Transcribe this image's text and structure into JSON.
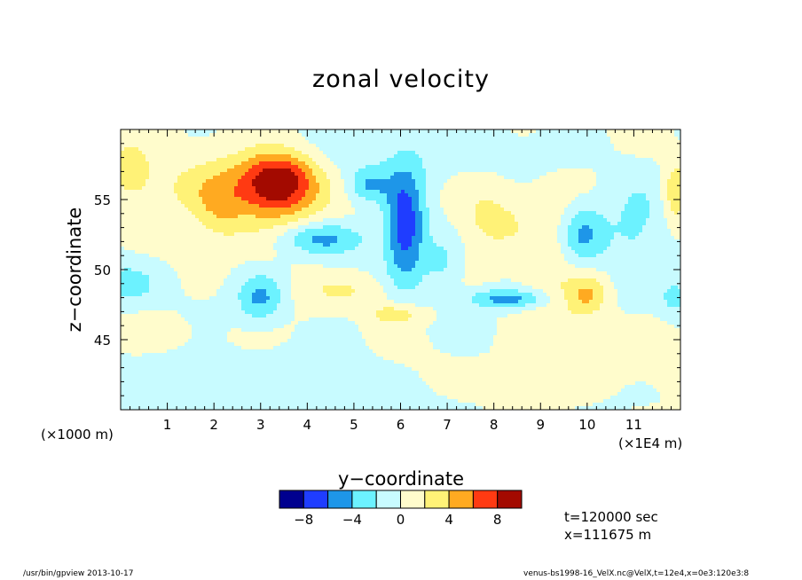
{
  "chart_data": {
    "type": "heatmap",
    "title": "zonal velocity",
    "xlabel": "y−coordinate",
    "ylabel": "z−coordinate",
    "x_scale_note": "(×1E4 m)",
    "y_scale_note": "(×1000 m)",
    "xlim": [
      0,
      12
    ],
    "ylim": [
      40,
      60
    ],
    "x_ticks": [
      1,
      2,
      3,
      4,
      5,
      6,
      7,
      8,
      9,
      10,
      11
    ],
    "y_ticks": [
      45,
      50,
      55
    ],
    "y_tick_labels": [
      "45",
      "50",
      "55"
    ],
    "x_tick_labels": [
      "1",
      "2",
      "3",
      "4",
      "5",
      "6",
      "7",
      "8",
      "9",
      "10",
      "11"
    ],
    "colorbar": {
      "levels": [
        -10,
        -8,
        -6,
        -4,
        -2,
        0,
        2,
        4,
        6,
        8,
        10
      ],
      "tick_values": [
        -8,
        -4,
        0,
        4,
        8
      ],
      "tick_labels": [
        "−8",
        "−4",
        "0",
        "4",
        "8"
      ],
      "colors": [
        "#00008f",
        "#1f3dff",
        "#1e96e8",
        "#6cf2ff",
        "#c8fbff",
        "#fffccc",
        "#fff277",
        "#ffaa21",
        "#ff3a12",
        "#a30a00"
      ]
    },
    "features": [
      {
        "x": 3.4,
        "z": 56.4,
        "v": 7.5,
        "sx": 0.55,
        "sz": 1.4
      },
      {
        "x": 3.1,
        "z": 55.5,
        "v": 4.2,
        "sx": 0.8,
        "sz": 2.2
      },
      {
        "x": 2.1,
        "z": 54.5,
        "v": 2.8,
        "sx": 0.4,
        "sz": 1.8
      },
      {
        "x": 0.2,
        "z": 57.0,
        "v": 3.6,
        "sx": 0.35,
        "sz": 1.5
      },
      {
        "x": 11.9,
        "z": 55.5,
        "v": 4.2,
        "sx": 0.2,
        "sz": 1.5
      },
      {
        "x": 1.3,
        "z": 56.0,
        "v": 1.6,
        "sx": 0.6,
        "sz": 1.6
      },
      {
        "x": 3.0,
        "z": 48.0,
        "v": -4.5,
        "sx": 0.35,
        "sz": 1.2
      },
      {
        "x": 4.3,
        "z": 52.2,
        "v": -4.6,
        "sx": 0.65,
        "sz": 0.8
      },
      {
        "x": 6.1,
        "z": 53.0,
        "v": -7.5,
        "sx": 0.3,
        "sz": 2.8
      },
      {
        "x": 5.3,
        "z": 56.0,
        "v": -3.5,
        "sx": 0.3,
        "sz": 0.8
      },
      {
        "x": 8.3,
        "z": 47.9,
        "v": -5.0,
        "sx": 0.6,
        "sz": 0.5
      },
      {
        "x": 9.9,
        "z": 52.5,
        "v": -5.2,
        "sx": 0.35,
        "sz": 1.6
      },
      {
        "x": 11.0,
        "z": 53.0,
        "v": -2.5,
        "sx": 0.45,
        "sz": 2.4
      },
      {
        "x": 0.2,
        "z": 49.0,
        "v": -2.6,
        "sx": 0.45,
        "sz": 1.1
      },
      {
        "x": 11.9,
        "z": 48.0,
        "v": -2.6,
        "sx": 0.25,
        "sz": 1.0
      },
      {
        "x": 6.9,
        "z": 50.5,
        "v": -2.6,
        "sx": 0.3,
        "sz": 1.5
      },
      {
        "x": 5.9,
        "z": 46.8,
        "v": 3.6,
        "sx": 0.4,
        "sz": 0.5
      },
      {
        "x": 10.0,
        "z": 48.2,
        "v": 3.6,
        "sx": 0.3,
        "sz": 1.0
      },
      {
        "x": 7.9,
        "z": 53.5,
        "v": 2.6,
        "sx": 0.5,
        "sz": 1.8
      },
      {
        "x": 4.9,
        "z": 48.5,
        "v": 2.2,
        "sx": 0.7,
        "sz": 0.8
      },
      {
        "x": 9.3,
        "z": 51.5,
        "v": 1.8,
        "sx": 0.6,
        "sz": 4.0
      },
      {
        "x": 3.0,
        "z": 42.0,
        "v": -0.8,
        "sx": 3.5,
        "sz": 2.0
      },
      {
        "x": 7.5,
        "z": 42.5,
        "v": 0.6,
        "sx": 1.5,
        "sz": 1.5
      },
      {
        "x": 10.5,
        "z": 44.0,
        "v": 0.8,
        "sx": 1.2,
        "sz": 2.0
      },
      {
        "x": 1.5,
        "z": 45.5,
        "v": 0.7,
        "sx": 1.2,
        "sz": 1.0
      },
      {
        "x": 6.0,
        "z": 58.0,
        "v": -1.2,
        "sx": 2.5,
        "sz": 1.5
      }
    ]
  },
  "annotations": {
    "time": "t=120000 sec",
    "xpos": "x=111675  m"
  },
  "footer": {
    "left": "/usr/bin/gpview   2013-10-17",
    "right": "venus-bs1998-16_VelX.nc@VelX,t=12e4,x=0e3:120e3:8"
  }
}
